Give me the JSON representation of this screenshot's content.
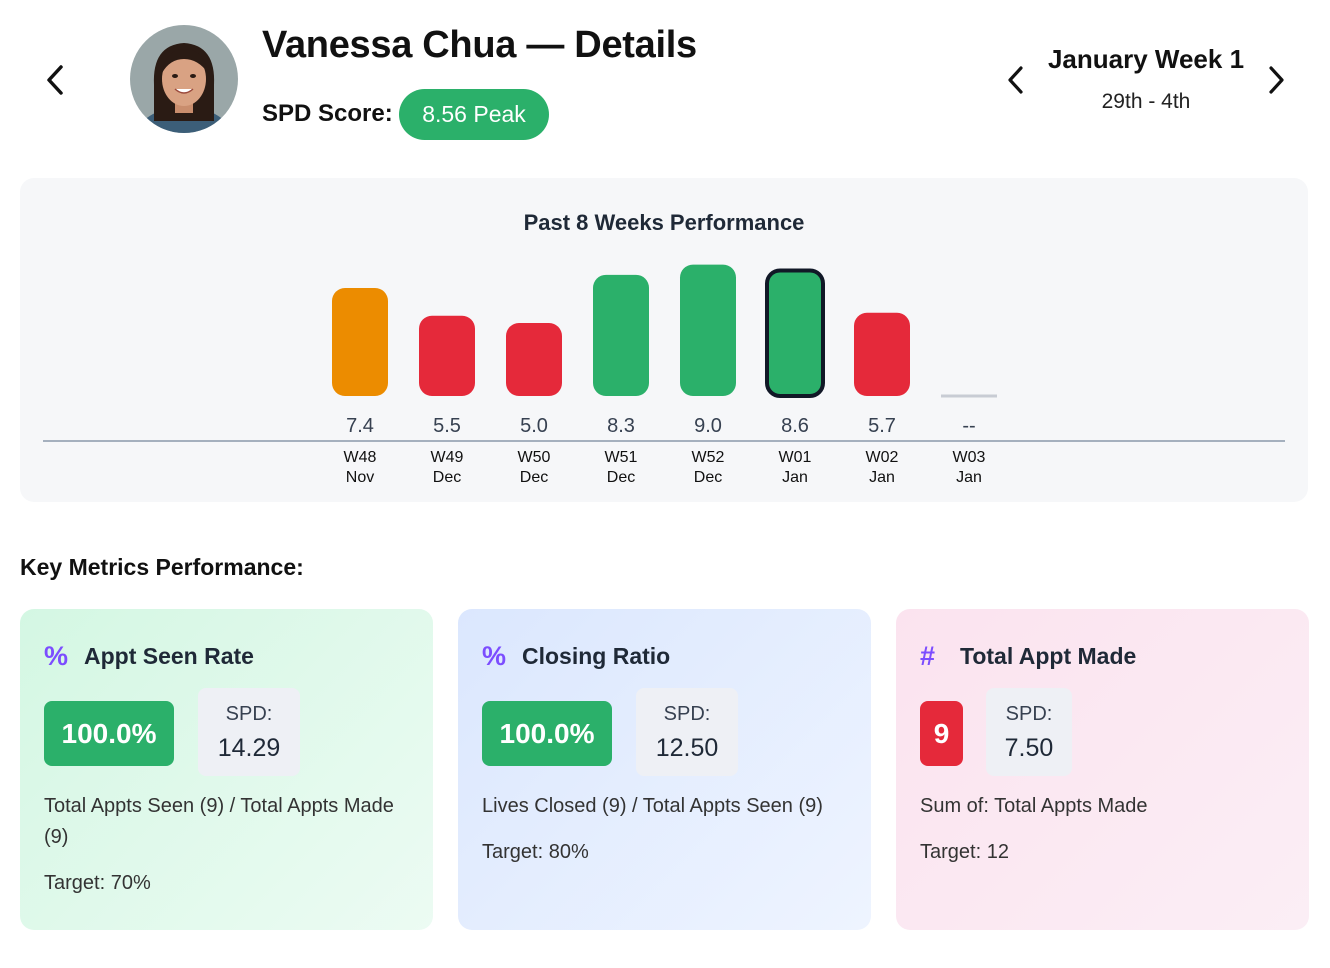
{
  "header": {
    "title": "Vanessa Chua — Details",
    "spd_label": "SPD Score:",
    "spd_value": "8.56 Peak",
    "week_title": "January Week 1",
    "week_range": "29th - 4th"
  },
  "icons": {
    "back": "chevron-left-icon",
    "prev": "chevron-left-icon",
    "next": "chevron-right-icon"
  },
  "colors": {
    "green": "#2bb06a",
    "orange": "#ec8c00",
    "red": "#e5293a",
    "accent_purple": "#7c4dff",
    "empty": "#c8ccd4"
  },
  "chart_data": {
    "type": "bar",
    "title": "Past 8 Weeks Performance",
    "categories": [
      "W48",
      "W49",
      "W50",
      "W51",
      "W52",
      "W01",
      "W02",
      "W03"
    ],
    "months": [
      "Nov",
      "Dec",
      "Dec",
      "Dec",
      "Dec",
      "Jan",
      "Jan",
      "Jan"
    ],
    "values": [
      7.4,
      5.5,
      5.0,
      8.3,
      9.0,
      8.6,
      5.7,
      null
    ],
    "value_labels": [
      "7.4",
      "5.5",
      "5.0",
      "8.3",
      "9.0",
      "8.6",
      "5.7",
      "--"
    ],
    "bar_colors": [
      "#ec8c00",
      "#e5293a",
      "#e5293a",
      "#2bb06a",
      "#2bb06a",
      "#2bb06a",
      "#e5293a",
      "#c8ccd4"
    ],
    "selected_index": 5,
    "ylim": [
      0,
      9
    ],
    "xlabel": "",
    "ylabel": ""
  },
  "metrics": {
    "section_title": "Key Metrics Performance:",
    "cards": [
      {
        "icon": "%",
        "label": "Appt Seen Rate",
        "value": "100.0%",
        "spd_label": "SPD:",
        "spd_value": "14.29",
        "description": "Total Appts Seen (9) / Total Appts Made (9)",
        "target": "Target: 70%"
      },
      {
        "icon": "%",
        "label": "Closing Ratio",
        "value": "100.0%",
        "spd_label": "SPD:",
        "spd_value": "12.50",
        "description": "Lives Closed (9) / Total Appts Seen (9)",
        "target": "Target: 80%"
      },
      {
        "icon": "#",
        "label": "Total Appt Made",
        "value": "9",
        "spd_label": "SPD:",
        "spd_value": "7.50",
        "description": "Sum of: Total Appts Made",
        "target": "Target: 12"
      }
    ]
  }
}
